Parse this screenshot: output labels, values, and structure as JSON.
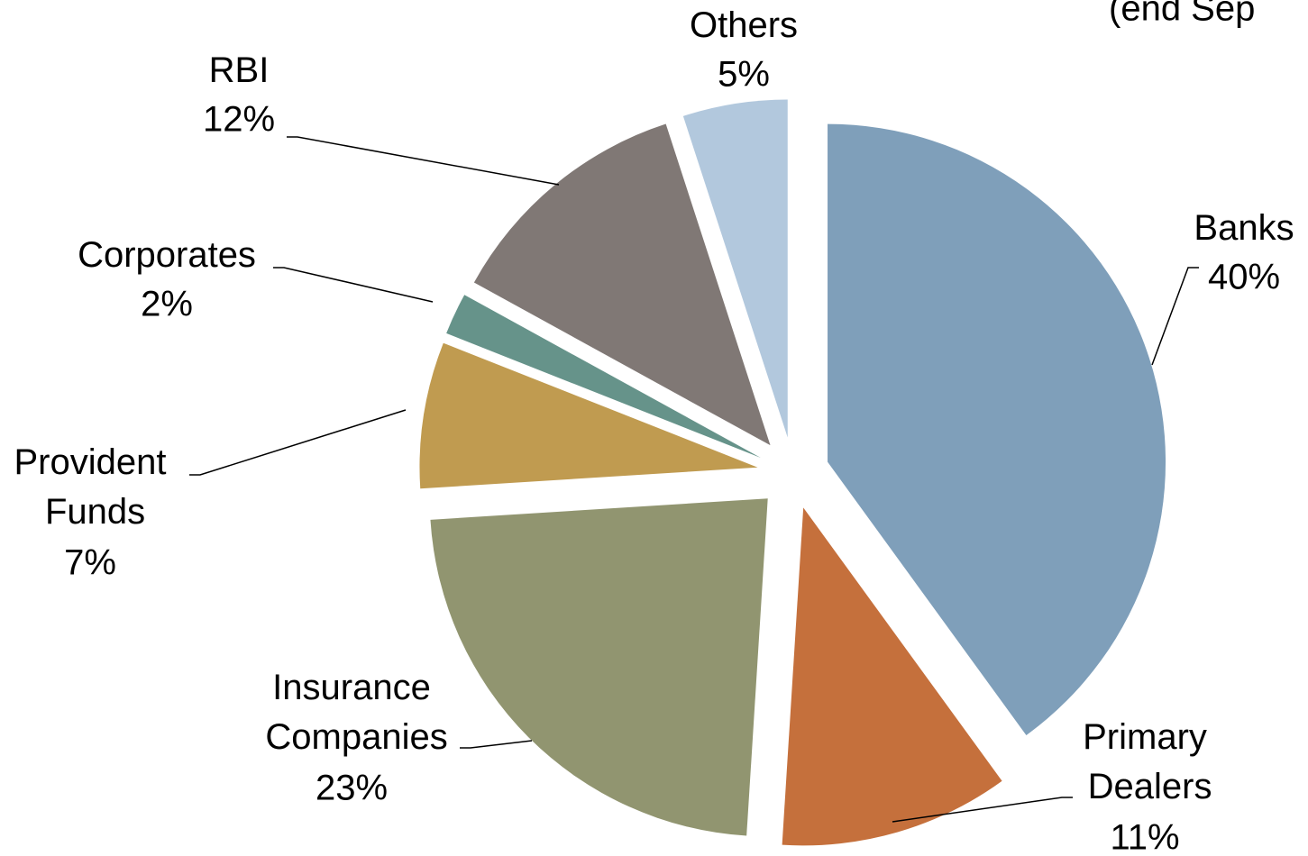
{
  "chart_data": {
    "type": "pie",
    "title": "(end Sep",
    "categories": [
      "Banks",
      "Primary Dealers",
      "Insurance Companies",
      "Provident Funds",
      "Corporates",
      "RBI",
      "Others"
    ],
    "values": [
      40,
      11,
      23,
      7,
      2,
      12,
      5
    ],
    "value_labels": [
      "40%",
      "11%",
      "23%",
      "7%",
      "2%",
      "12%",
      "5%"
    ],
    "colors": [
      "#7f9fba",
      "#c5703c",
      "#919570",
      "#c09b50",
      "#66938a",
      "#807875",
      "#b2c8dd"
    ]
  }
}
